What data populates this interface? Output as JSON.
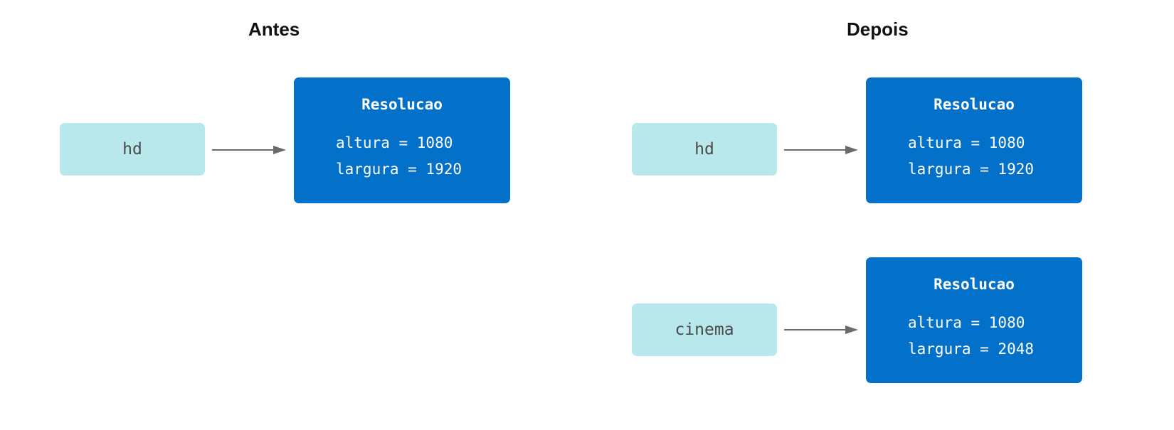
{
  "before": {
    "title": "Antes",
    "var": "hd",
    "struct": {
      "name": "Resolucao",
      "field1": "altura = 1080",
      "field2": "largura = 1920"
    }
  },
  "after": {
    "title": "Depois",
    "items": [
      {
        "var": "hd",
        "struct": {
          "name": "Resolucao",
          "field1": "altura = 1080",
          "field2": "largura = 1920"
        }
      },
      {
        "var": "cinema",
        "struct": {
          "name": "Resolucao",
          "field1": "altura = 1080",
          "field2": "largura = 2048"
        }
      }
    ]
  },
  "colors": {
    "variable_fill": "#b8e8ec",
    "struct_fill": "#0370c9",
    "arrow": "#6b6b6b"
  }
}
